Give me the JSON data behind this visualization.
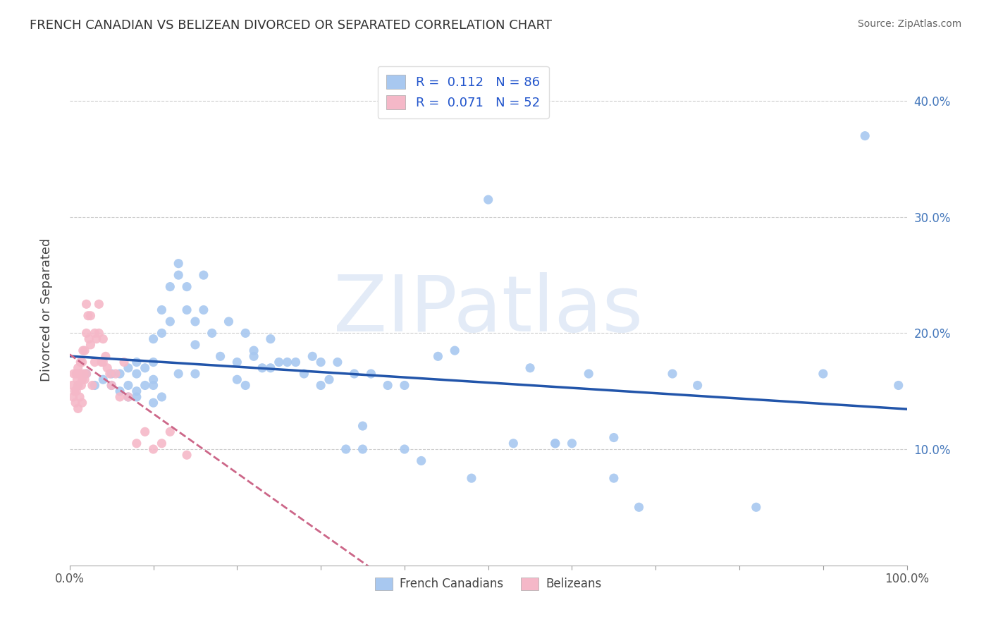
{
  "title": "FRENCH CANADIAN VS BELIZEAN DIVORCED OR SEPARATED CORRELATION CHART",
  "source": "Source: ZipAtlas.com",
  "ylabel": "Divorced or Separated",
  "legend_label_blue": "French Canadians",
  "legend_label_pink": "Belizeans",
  "xlim": [
    0,
    1.0
  ],
  "ylim": [
    0,
    0.44
  ],
  "blue_color": "#A8C8F0",
  "blue_line_color": "#2255AA",
  "pink_color": "#F5B8C8",
  "pink_line_color": "#CC6688",
  "legend_R_blue": "0.112",
  "legend_N_blue": "86",
  "legend_R_pink": "0.071",
  "legend_N_pink": "52",
  "watermark": "ZIPatlas",
  "blue_scatter_x": [
    0.01,
    0.02,
    0.03,
    0.04,
    0.05,
    0.05,
    0.06,
    0.06,
    0.07,
    0.07,
    0.07,
    0.08,
    0.08,
    0.08,
    0.08,
    0.09,
    0.09,
    0.1,
    0.1,
    0.1,
    0.1,
    0.1,
    0.11,
    0.11,
    0.11,
    0.12,
    0.12,
    0.13,
    0.13,
    0.13,
    0.14,
    0.14,
    0.15,
    0.15,
    0.15,
    0.16,
    0.16,
    0.17,
    0.18,
    0.19,
    0.2,
    0.2,
    0.21,
    0.21,
    0.22,
    0.22,
    0.23,
    0.24,
    0.24,
    0.25,
    0.26,
    0.27,
    0.28,
    0.29,
    0.3,
    0.3,
    0.31,
    0.32,
    0.33,
    0.34,
    0.35,
    0.36,
    0.38,
    0.4,
    0.42,
    0.44,
    0.46,
    0.5,
    0.55,
    0.58,
    0.6,
    0.62,
    0.65,
    0.68,
    0.72,
    0.75,
    0.82,
    0.9,
    0.95,
    0.99,
    0.35,
    0.4,
    0.48,
    0.53,
    0.58,
    0.65
  ],
  "blue_scatter_y": [
    0.155,
    0.165,
    0.155,
    0.16,
    0.165,
    0.155,
    0.15,
    0.165,
    0.145,
    0.155,
    0.17,
    0.145,
    0.15,
    0.165,
    0.175,
    0.155,
    0.17,
    0.14,
    0.155,
    0.16,
    0.175,
    0.195,
    0.2,
    0.22,
    0.145,
    0.21,
    0.24,
    0.25,
    0.26,
    0.165,
    0.22,
    0.24,
    0.21,
    0.19,
    0.165,
    0.22,
    0.25,
    0.2,
    0.18,
    0.21,
    0.16,
    0.175,
    0.2,
    0.155,
    0.18,
    0.185,
    0.17,
    0.17,
    0.195,
    0.175,
    0.175,
    0.175,
    0.165,
    0.18,
    0.175,
    0.155,
    0.16,
    0.175,
    0.1,
    0.165,
    0.12,
    0.165,
    0.155,
    0.155,
    0.09,
    0.18,
    0.185,
    0.315,
    0.17,
    0.105,
    0.105,
    0.165,
    0.11,
    0.05,
    0.165,
    0.155,
    0.05,
    0.165,
    0.37,
    0.155,
    0.1,
    0.1,
    0.075,
    0.105,
    0.105,
    0.075
  ],
  "pink_scatter_x": [
    0.003,
    0.004,
    0.005,
    0.006,
    0.007,
    0.008,
    0.008,
    0.009,
    0.01,
    0.01,
    0.01,
    0.012,
    0.012,
    0.013,
    0.014,
    0.015,
    0.015,
    0.015,
    0.016,
    0.017,
    0.018,
    0.018,
    0.02,
    0.02,
    0.02,
    0.022,
    0.023,
    0.025,
    0.025,
    0.027,
    0.03,
    0.03,
    0.032,
    0.035,
    0.035,
    0.038,
    0.04,
    0.04,
    0.043,
    0.045,
    0.048,
    0.05,
    0.055,
    0.06,
    0.065,
    0.07,
    0.08,
    0.09,
    0.1,
    0.11,
    0.12,
    0.14
  ],
  "pink_scatter_y": [
    0.155,
    0.145,
    0.165,
    0.15,
    0.14,
    0.165,
    0.15,
    0.16,
    0.17,
    0.155,
    0.135,
    0.165,
    0.145,
    0.175,
    0.155,
    0.175,
    0.16,
    0.14,
    0.185,
    0.165,
    0.185,
    0.16,
    0.2,
    0.225,
    0.165,
    0.215,
    0.195,
    0.215,
    0.19,
    0.155,
    0.2,
    0.175,
    0.195,
    0.225,
    0.2,
    0.175,
    0.195,
    0.175,
    0.18,
    0.17,
    0.165,
    0.155,
    0.165,
    0.145,
    0.175,
    0.145,
    0.105,
    0.115,
    0.1,
    0.105,
    0.115,
    0.095
  ],
  "background_color": "#FFFFFF",
  "grid_color": "#CCCCCC"
}
